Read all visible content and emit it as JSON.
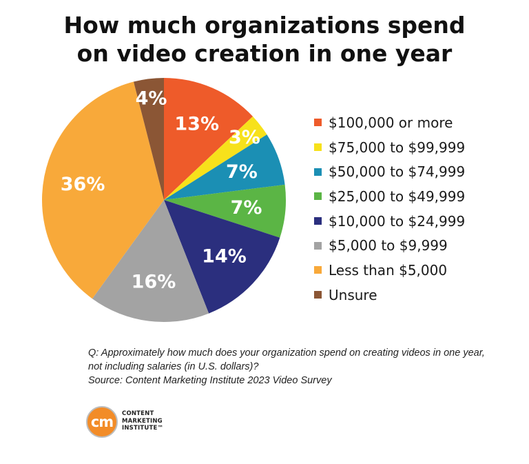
{
  "chart_data": {
    "type": "pie",
    "title_lines": [
      "How much organizations spend",
      "on video creation in one year"
    ],
    "slices": [
      {
        "label": "$100,000 or more",
        "value": 13,
        "display": "13%",
        "color": "#ee5b2a"
      },
      {
        "label": "$75,000 to $99,999",
        "value": 3,
        "display": "3%",
        "color": "#f7e11b"
      },
      {
        "label": "$50,000 to $74,999",
        "value": 7,
        "display": "7%",
        "color": "#1b8fb4"
      },
      {
        "label": "$25,000 to $49,999",
        "value": 7,
        "display": "7%",
        "color": "#5bb545"
      },
      {
        "label": "$10,000 to $24,999",
        "value": 14,
        "display": "14%",
        "color": "#2b2f7e"
      },
      {
        "label": "$5,000 to $9,999",
        "value": 16,
        "display": "16%",
        "color": "#a3a3a3"
      },
      {
        "label": "Less than $5,000",
        "value": 36,
        "display": "36%",
        "color": "#f8a93a"
      },
      {
        "label": "Unsure",
        "value": 4,
        "display": "4%",
        "color": "#8b5635"
      }
    ],
    "legend_position": "right"
  },
  "footnote": {
    "question_line1": "Q: Approximately how much does your organization spend on creating videos in one year,",
    "question_line2": "not including salaries (in U.S. dollars)?",
    "source": "Source: Content Marketing Institute 2023 Video Survey"
  },
  "logo": {
    "mark": "cm",
    "line1": "CONTENT",
    "line2": "MARKETING",
    "line3": "INSTITUTE™"
  }
}
